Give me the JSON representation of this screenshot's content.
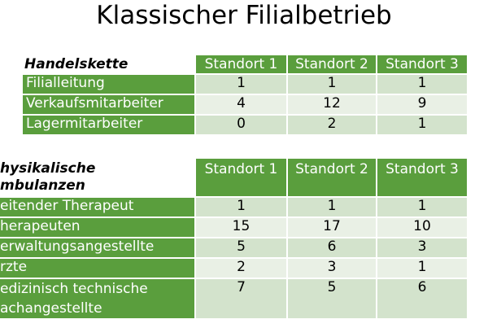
{
  "title": "Klassischer Filialbetrieb",
  "table1": {
    "caption": "Handelskette",
    "headers": [
      "Standort 1",
      "Standort 2",
      "Standort 3"
    ],
    "rows": [
      {
        "label": "Filialleitung",
        "values": [
          "1",
          "1",
          "1"
        ]
      },
      {
        "label": "Verkaufsmitarbeiter",
        "values": [
          "4",
          "12",
          "9"
        ]
      },
      {
        "label": "Lagermitarbeiter",
        "values": [
          "0",
          "2",
          "1"
        ]
      }
    ]
  },
  "table2": {
    "caption_line1": "hysikalische",
    "caption_line2": "mbulanzen",
    "headers": [
      "Standort 1",
      "Standort 2",
      "Standort 3"
    ],
    "rows": [
      {
        "label": "eitender Therapeut",
        "values": [
          "1",
          "1",
          "1"
        ]
      },
      {
        "label": "herapeuten",
        "values": [
          "15",
          "17",
          "10"
        ]
      },
      {
        "label": "erwaltungsangestellte",
        "values": [
          "5",
          "6",
          "3"
        ]
      },
      {
        "label": "rzte",
        "values": [
          "2",
          "3",
          "1"
        ]
      },
      {
        "label_line1": "edizinisch technische",
        "label_line2": "achangestellte",
        "values": [
          "7",
          "5",
          "6"
        ]
      }
    ]
  },
  "colors": {
    "header_green": "#5a9e3d",
    "row_light": "#e9f0e5",
    "row_dark": "#d3e3cc"
  }
}
